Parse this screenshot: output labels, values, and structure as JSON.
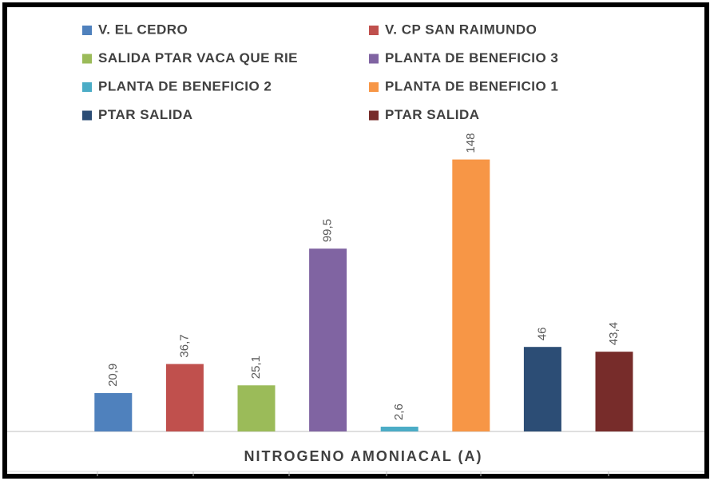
{
  "chart_data": {
    "type": "bar",
    "categories": [
      "NITROGENO AMONIACAL (A)"
    ],
    "ylim": [
      0,
      160
    ],
    "series": [
      {
        "name": "V. EL CEDRO",
        "color": "#4f81bd",
        "values": [
          20.9
        ],
        "value_labels": [
          "20,9"
        ]
      },
      {
        "name": "V. CP SAN RAIMUNDO",
        "color": "#c0504d",
        "values": [
          36.7
        ],
        "value_labels": [
          "36,7"
        ]
      },
      {
        "name": "SALIDA PTAR VACA QUE RIE",
        "color": "#9bbb59",
        "values": [
          25.1
        ],
        "value_labels": [
          "25,1"
        ]
      },
      {
        "name": "PLANTA DE BENEFICIO 3",
        "color": "#8064a2",
        "values": [
          99.5
        ],
        "value_labels": [
          "99,5"
        ]
      },
      {
        "name": "PLANTA DE BENEFICIO 2",
        "color": "#4bacc6",
        "values": [
          2.6
        ],
        "value_labels": [
          "2,6"
        ]
      },
      {
        "name": "PLANTA DE BENEFICIO 1",
        "color": "#f79646",
        "values": [
          148
        ],
        "value_labels": [
          "148"
        ]
      },
      {
        "name": "PTAR SALIDA",
        "color": "#2c4d75",
        "values": [
          46
        ],
        "value_labels": [
          "46"
        ]
      },
      {
        "name": "PTAR SALIDA",
        "color": "#772c2a",
        "values": [
          43.4
        ],
        "value_labels": [
          "43,4"
        ]
      }
    ]
  }
}
